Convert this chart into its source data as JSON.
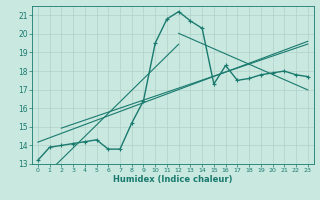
{
  "x": [
    0,
    1,
    2,
    3,
    4,
    5,
    6,
    7,
    8,
    9,
    10,
    11,
    12,
    13,
    14,
    15,
    16,
    17,
    18,
    19,
    20,
    21,
    22,
    23
  ],
  "y": [
    13.2,
    13.9,
    14.0,
    14.1,
    14.2,
    14.3,
    13.8,
    13.8,
    15.2,
    16.4,
    19.5,
    20.8,
    21.2,
    20.7,
    20.3,
    17.3,
    18.3,
    17.5,
    17.6,
    17.8,
    17.9,
    18.0,
    17.8,
    17.7
  ],
  "line_color": "#1a7a6e",
  "marker": "+",
  "background_color": "#c8e8e0",
  "grid_color": "#b0d0c8",
  "xlabel": "Humidex (Indice chaleur)",
  "xlim": [
    -0.5,
    23.5
  ],
  "ylim": [
    13,
    21.5
  ],
  "yticks": [
    13,
    14,
    15,
    16,
    17,
    18,
    19,
    20,
    21
  ],
  "xticks": [
    0,
    1,
    2,
    3,
    4,
    5,
    6,
    7,
    8,
    9,
    10,
    11,
    12,
    13,
    14,
    15,
    16,
    17,
    18,
    19,
    20,
    21,
    22,
    23
  ],
  "linewidth": 1.0,
  "markersize": 3.5
}
